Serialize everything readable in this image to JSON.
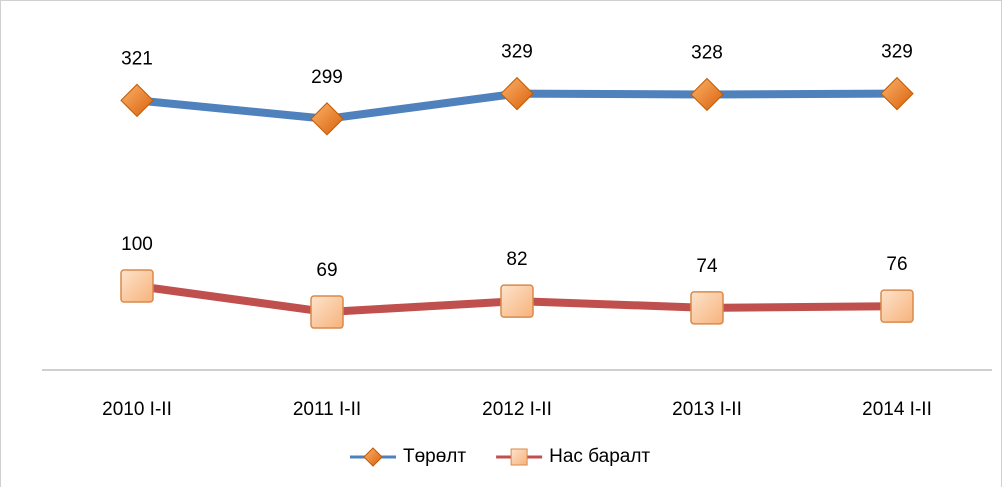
{
  "chart_data": {
    "type": "line",
    "categories": [
      "2010 I-II",
      "2011 I-II",
      "2012 I-II",
      "2013 I-II",
      "2014 I-II"
    ],
    "series": [
      {
        "name": "Төрөлт",
        "color": "#4f81bd",
        "marker": "diamond",
        "marker_color": "#f07f1e",
        "values": [
          321,
          299,
          329,
          328,
          329
        ]
      },
      {
        "name": "Нас баралт",
        "color": "#c0504d",
        "marker": "square",
        "marker_color": "#fbc79a",
        "values": [
          100,
          69,
          82,
          74,
          76
        ]
      }
    ],
    "ylim": [
      0,
      400
    ],
    "legend": "bottom"
  }
}
